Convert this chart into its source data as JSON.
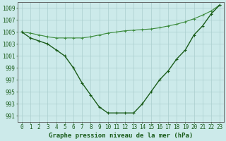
{
  "line1_deep": {
    "x": [
      0,
      1,
      2,
      3,
      4,
      5,
      6,
      7,
      8,
      9,
      10,
      11,
      12,
      13,
      14,
      15,
      16,
      17,
      18,
      19,
      20,
      21,
      22,
      23
    ],
    "y": [
      1005.0,
      1004.0,
      1003.5,
      1003.0,
      1002.0,
      1001.0,
      999.0,
      996.5,
      994.5,
      992.5,
      991.5,
      991.5,
      991.5,
      991.5,
      993.0,
      995.0,
      997.0,
      998.5,
      1000.5,
      1002.0,
      1004.5,
      1006.0,
      1008.0,
      1009.5
    ],
    "color": "#1a5c1a",
    "linewidth": 1.0,
    "marker": "+",
    "markersize": 3.5,
    "markeredgewidth": 0.8
  },
  "line2_flat": {
    "x": [
      0,
      1,
      2,
      3,
      4,
      5,
      6,
      7,
      8,
      9,
      10,
      11,
      12,
      13,
      14,
      15,
      16,
      17,
      18,
      19,
      20,
      21,
      22,
      23
    ],
    "y": [
      1005.0,
      1004.8,
      1004.5,
      1004.2,
      1004.0,
      1004.0,
      1004.0,
      1004.0,
      1004.2,
      1004.5,
      1004.8,
      1005.0,
      1005.2,
      1005.3,
      1005.4,
      1005.5,
      1005.7,
      1006.0,
      1006.3,
      1006.7,
      1007.2,
      1007.8,
      1008.5,
      1009.5
    ],
    "color": "#3a8a3a",
    "linewidth": 0.8,
    "marker": "+",
    "markersize": 2.5,
    "markeredgewidth": 0.6
  },
  "ylim": [
    990.0,
    1010.0
  ],
  "yticks": [
    991,
    993,
    995,
    997,
    999,
    1001,
    1003,
    1005,
    1007,
    1009
  ],
  "xlim": [
    -0.5,
    23.5
  ],
  "xticks": [
    0,
    1,
    2,
    3,
    4,
    5,
    6,
    7,
    8,
    9,
    10,
    11,
    12,
    13,
    14,
    15,
    16,
    17,
    18,
    19,
    20,
    21,
    22,
    23
  ],
  "xlabel": "Graphe pression niveau de la mer (hPa)",
  "bg_color": "#cceaea",
  "grid_color": "#aacece",
  "text_color": "#1a5c1a",
  "axis_color": "#555555",
  "xlabel_fontsize": 6.5,
  "tick_fontsize": 5.5
}
